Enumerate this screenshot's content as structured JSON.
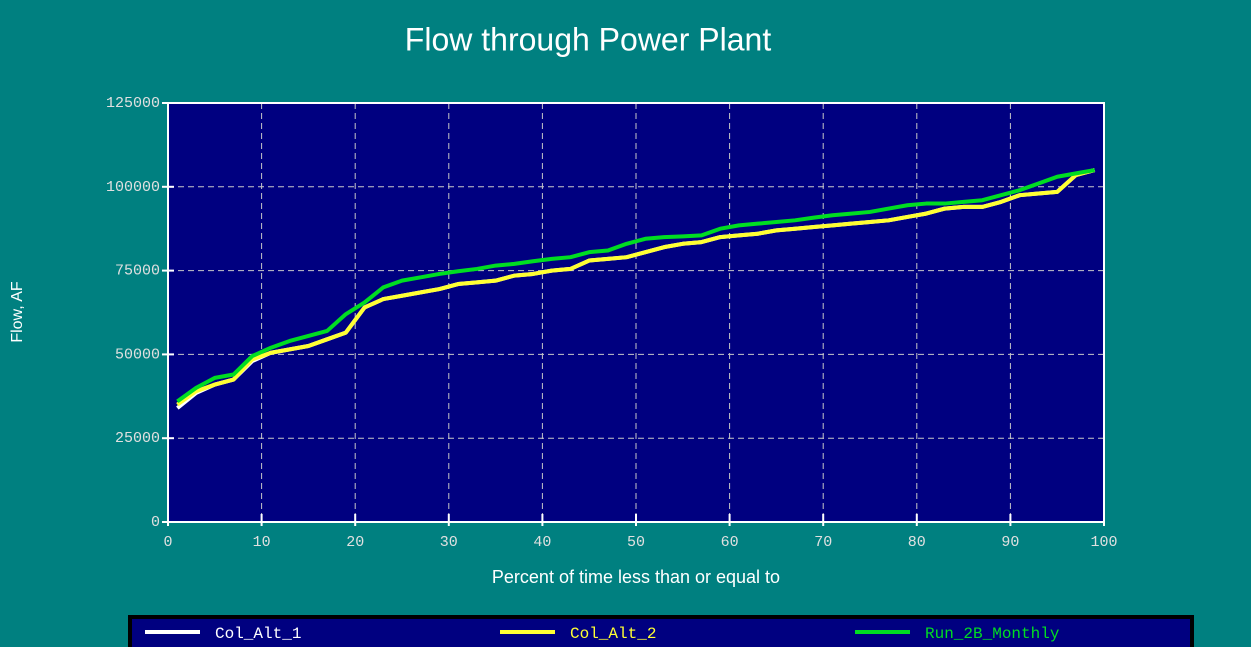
{
  "chart_data": {
    "type": "line",
    "title": "Flow through Power Plant",
    "x_label": "Percent of time less than or equal to",
    "y_label": "Flow, AF",
    "x": [
      1,
      3,
      5,
      7,
      9,
      11,
      13,
      15,
      17,
      19,
      21,
      23,
      25,
      27,
      29,
      31,
      33,
      35,
      37,
      39,
      41,
      43,
      45,
      47,
      49,
      51,
      53,
      55,
      57,
      59,
      61,
      63,
      65,
      67,
      69,
      71,
      73,
      75,
      77,
      79,
      81,
      83,
      85,
      87,
      89,
      91,
      93,
      95,
      97,
      99
    ],
    "series": [
      {
        "name": "Col_Alt_1",
        "color": "#ffffff",
        "values": [
          34000,
          38500,
          41000,
          42500,
          48000,
          50500,
          51500,
          52500,
          54500,
          56500,
          64000,
          66500,
          67500,
          68500,
          69500,
          71000,
          71500,
          72000,
          73500,
          74000,
          75000,
          75500,
          78000,
          78500,
          79000,
          80500,
          82000,
          83000,
          83500,
          85000,
          85500,
          86000,
          87000,
          87500,
          88000,
          88500,
          89000,
          89500,
          90000,
          91000,
          92000,
          93500,
          94000,
          94000,
          95500,
          97500,
          98000,
          98500,
          103500,
          105000
        ]
      },
      {
        "name": "Col_Alt_2",
        "color": "#ffff33",
        "values": [
          35000,
          39000,
          41000,
          42500,
          48500,
          50500,
          51500,
          52500,
          54500,
          56500,
          64000,
          66500,
          67500,
          68500,
          69500,
          71000,
          71500,
          72000,
          73500,
          74000,
          75000,
          75500,
          78000,
          78500,
          79000,
          80500,
          82000,
          83000,
          83500,
          85000,
          85500,
          86000,
          87000,
          87500,
          88000,
          88500,
          89000,
          89500,
          90000,
          91000,
          92000,
          93500,
          94000,
          94000,
          95500,
          97500,
          98000,
          98500,
          103500,
          105000
        ]
      },
      {
        "name": "Run_2B_Monthly",
        "color": "#00dd22",
        "values": [
          36000,
          40000,
          43000,
          44000,
          49500,
          52000,
          54000,
          55500,
          57000,
          62000,
          65500,
          70000,
          72000,
          73000,
          74000,
          74800,
          75500,
          76500,
          77000,
          77800,
          78500,
          79000,
          80500,
          81000,
          83000,
          84500,
          85000,
          85200,
          85500,
          87500,
          88500,
          89000,
          89500,
          90000,
          90800,
          91500,
          92000,
          92500,
          93500,
          94500,
          95000,
          95000,
          95500,
          96000,
          97500,
          99000,
          101000,
          103000,
          104000,
          105000
        ]
      }
    ],
    "xlim": [
      0,
      100
    ],
    "xticks": [
      0,
      10,
      20,
      30,
      40,
      50,
      60,
      70,
      80,
      90,
      100
    ],
    "ylim": [
      0,
      125000
    ],
    "yticks": [
      0,
      25000,
      50000,
      75000,
      100000,
      125000
    ],
    "grid": true
  }
}
